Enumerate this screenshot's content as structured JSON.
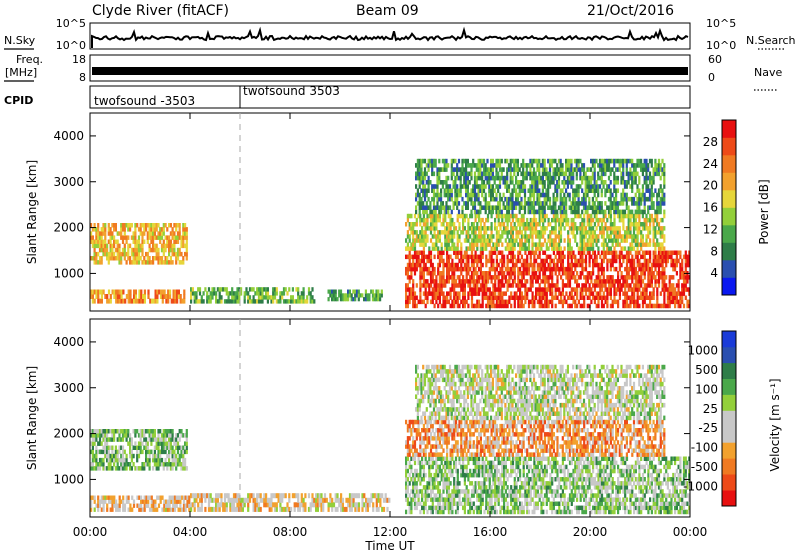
{
  "header": {
    "station": "Clyde River (fitACF)",
    "beam": "Beam 09",
    "date": "21/Oct/2016"
  },
  "strips": {
    "nsky": {
      "label": "N.Sky",
      "ticks": [
        "10^5",
        "10^0"
      ],
      "right_label": "N.Search",
      "right_ticks": [
        "10^5",
        "10^0"
      ]
    },
    "freq": {
      "label_1": "Freq.",
      "label_2": "[MHz]",
      "ticks": [
        "18",
        "8"
      ],
      "right_label": "Nave",
      "right_ticks": [
        "60",
        "0"
      ]
    },
    "cpid": {
      "label": "CPID",
      "segments": [
        {
          "name": "twofsound -3503",
          "start_hour": 0
        },
        {
          "name": "twofsound 3503",
          "start_hour": 6
        }
      ]
    }
  },
  "chart_data": [
    {
      "type": "heatmap",
      "panel": "power",
      "ylabel": "Slant Range [km]",
      "ylim": [
        180,
        4500
      ],
      "yticks": [
        "1000",
        "2000",
        "3000",
        "4000"
      ],
      "xlim": [
        0,
        24
      ],
      "xticks": [
        "00:00",
        "04:00",
        "08:00",
        "12:00",
        "16:00",
        "20:00",
        "00:00"
      ],
      "xlabel": "",
      "colorbar": {
        "label": "Power [dB]",
        "ticks": [
          "4",
          "8",
          "12",
          "16",
          "20",
          "24",
          "28"
        ],
        "range": [
          0,
          32
        ],
        "colors": [
          "#0a18f0",
          "#2a4fb0",
          "#2e7d48",
          "#4aa84a",
          "#93cf3a",
          "#e6d63a",
          "#f2a12e",
          "#f07a22",
          "#ee4a18",
          "#e81010"
        ]
      },
      "echo_regions": [
        {
          "t": [
            0,
            3.9
          ],
          "r": [
            1200,
            2100
          ],
          "value": 20
        },
        {
          "t": [
            0,
            3.8
          ],
          "r": [
            350,
            650
          ],
          "value": 22
        },
        {
          "t": [
            4,
            9
          ],
          "r": [
            350,
            700
          ],
          "value": 12
        },
        {
          "t": [
            9.5,
            11.7
          ],
          "r": [
            400,
            650
          ],
          "value": 10
        },
        {
          "t": [
            12.6,
            24
          ],
          "r": [
            250,
            1500
          ],
          "value": 28
        },
        {
          "t": [
            12.6,
            23
          ],
          "r": [
            1500,
            2300
          ],
          "value": 16
        },
        {
          "t": [
            13,
            23
          ],
          "r": [
            2300,
            3500
          ],
          "value": 10
        }
      ]
    },
    {
      "type": "heatmap",
      "panel": "velocity",
      "ylabel": "Slant Range [km]",
      "ylim": [
        180,
        4500
      ],
      "yticks": [
        "1000",
        "2000",
        "3000",
        "4000"
      ],
      "xlim": [
        0,
        24
      ],
      "xticks": [
        "00:00",
        "04:00",
        "08:00",
        "12:00",
        "16:00",
        "20:00",
        "00:00"
      ],
      "xlabel": "Time UT",
      "colorbar": {
        "label": "Velocity [m s⁻¹]",
        "ticks": [
          "1000",
          "500",
          "100",
          "25",
          "-25",
          "-100",
          "-500",
          "-1000"
        ],
        "range": [
          -1200,
          1200
        ],
        "colors": [
          "#e81010",
          "#ee4a18",
          "#f07a22",
          "#f2a12e",
          "#c8c8c8",
          "#c8c8c8",
          "#93cf3a",
          "#4aa84a",
          "#2e7d48",
          "#2a4fb0",
          "#1a3bd8"
        ]
      },
      "echo_regions": [
        {
          "t": [
            0,
            3.9
          ],
          "r": [
            1200,
            2100
          ],
          "value": 300
        },
        {
          "t": [
            0,
            4
          ],
          "r": [
            300,
            650
          ],
          "value": -300
        },
        {
          "t": [
            4,
            12
          ],
          "r": [
            300,
            700
          ],
          "value": -200
        },
        {
          "t": [
            12.6,
            24
          ],
          "r": [
            250,
            1500
          ],
          "value": 200
        },
        {
          "t": [
            12.6,
            23
          ],
          "r": [
            1500,
            2300
          ],
          "value": -500
        },
        {
          "t": [
            13,
            23
          ],
          "r": [
            2300,
            3500
          ],
          "value": 0
        }
      ]
    }
  ]
}
